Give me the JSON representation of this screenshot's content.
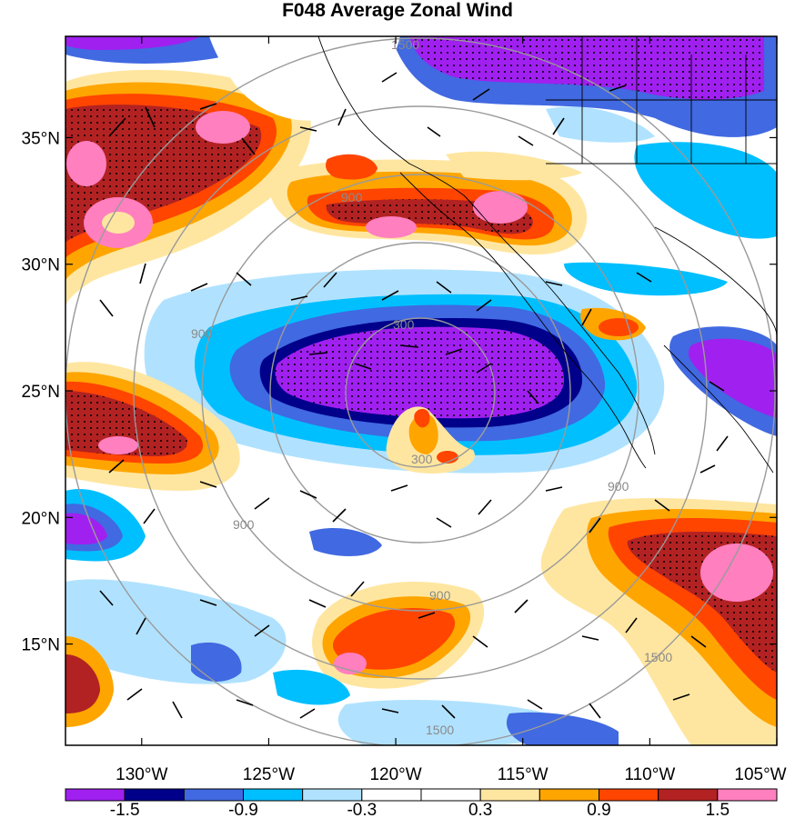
{
  "title": "F048 Average Zonal Wind",
  "map": {
    "lon_range": [
      -133,
      -105
    ],
    "lat_range": [
      11,
      39
    ],
    "lon_ticks": [
      {
        "value": -130,
        "label": "130°W"
      },
      {
        "value": -125,
        "label": "125°W"
      },
      {
        "value": -120,
        "label": "120°W"
      },
      {
        "value": -115,
        "label": "115°W"
      },
      {
        "value": -110,
        "label": "110°W"
      },
      {
        "value": -105,
        "label": "105°W"
      }
    ],
    "lat_ticks": [
      {
        "value": 15,
        "label": "15°N"
      },
      {
        "value": 20,
        "label": "20°N"
      },
      {
        "value": 25,
        "label": "25°N"
      },
      {
        "value": 30,
        "label": "30°N"
      },
      {
        "value": 35,
        "label": "35°N"
      }
    ],
    "range_rings": {
      "center": [
        -119.5,
        24.8
      ],
      "radii_km": [
        300,
        600,
        900,
        1200,
        1500
      ],
      "labels": [
        "300",
        "900",
        "1500"
      ],
      "color": "#9a9a9a"
    },
    "stipple": "significance dots",
    "wind_barbs": true
  },
  "colorbar": {
    "colors": [
      "#a020f0",
      "#00008b",
      "#4169e1",
      "#00bfff",
      "#b0e2ff",
      "#ffffff",
      "#ffffff",
      "#ffe6a0",
      "#ffa500",
      "#ff4500",
      "#b22222",
      "#ff7fbf"
    ],
    "tick_labels": [
      "-1.5",
      "-0.9",
      "-0.3",
      "0.3",
      "0.9",
      "1.5"
    ]
  }
}
